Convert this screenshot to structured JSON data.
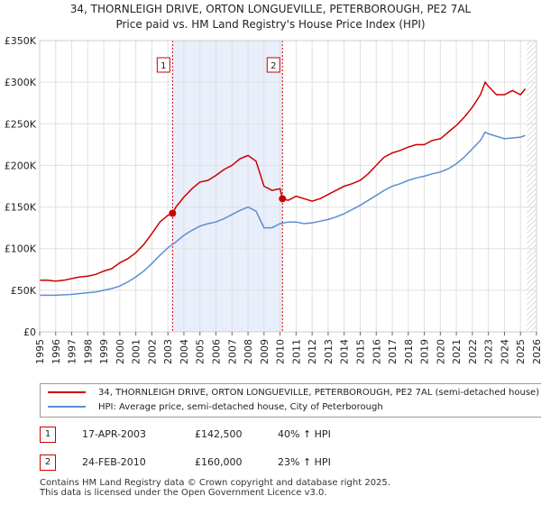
{
  "chart_data": {
    "type": "line",
    "title": "34, THORNLEIGH DRIVE, ORTON LONGUEVILLE, PETERBOROUGH, PE2 7AL",
    "subtitle": "Price paid vs. HM Land Registry's House Price Index (HPI)",
    "xlim": [
      1995,
      2026
    ],
    "ylim": [
      0,
      350000
    ],
    "x_ticks": [
      "1995",
      "1996",
      "1997",
      "1998",
      "1999",
      "2000",
      "2001",
      "2002",
      "2003",
      "2004",
      "2005",
      "2006",
      "2007",
      "2008",
      "2009",
      "2010",
      "2011",
      "2012",
      "2013",
      "2014",
      "2015",
      "2016",
      "2017",
      "2018",
      "2019",
      "2020",
      "2021",
      "2022",
      "2023",
      "2024",
      "2025",
      "2026"
    ],
    "y_ticks": [
      {
        "value": 0,
        "label": "£0"
      },
      {
        "value": 50000,
        "label": "£50K"
      },
      {
        "value": 100000,
        "label": "£100K"
      },
      {
        "value": 150000,
        "label": "£150K"
      },
      {
        "value": 200000,
        "label": "£200K"
      },
      {
        "value": 250000,
        "label": "£250K"
      },
      {
        "value": 300000,
        "label": "£300K"
      },
      {
        "value": 350000,
        "label": "£350K"
      }
    ],
    "shaded_region": {
      "from": 2003.29,
      "to": 2010.15
    },
    "future_hatch_from": 2025.4,
    "annotations": [
      {
        "label": "1",
        "x": 2003.29,
        "y": 142500
      },
      {
        "label": "2",
        "x": 2010.15,
        "y": 160000
      }
    ],
    "series": [
      {
        "name": "34, THORNLEIGH DRIVE, ORTON LONGUEVILLE, PETERBOROUGH, PE2 7AL (semi-detached house)",
        "color": "#cc0000",
        "x": [
          1995.0,
          1995.5,
          1996.0,
          1996.5,
          1997.0,
          1997.5,
          1998.0,
          1998.5,
          1999.0,
          1999.5,
          2000.0,
          2000.5,
          2001.0,
          2001.5,
          2002.0,
          2002.5,
          2003.0,
          2003.29,
          2003.5,
          2004.0,
          2004.5,
          2005.0,
          2005.5,
          2006.0,
          2006.5,
          2007.0,
          2007.5,
          2008.0,
          2008.5,
          2009.0,
          2009.5,
          2010.0,
          2010.15,
          2010.5,
          2011.0,
          2011.5,
          2012.0,
          2012.5,
          2013.0,
          2013.5,
          2014.0,
          2014.5,
          2015.0,
          2015.5,
          2016.0,
          2016.5,
          2017.0,
          2017.5,
          2018.0,
          2018.5,
          2019.0,
          2019.5,
          2020.0,
          2020.5,
          2021.0,
          2021.5,
          2022.0,
          2022.5,
          2022.8,
          2023.0,
          2023.5,
          2024.0,
          2024.5,
          2025.0,
          2025.3
        ],
        "values": [
          62000,
          62000,
          61000,
          62000,
          64000,
          66000,
          67000,
          69000,
          73000,
          76000,
          83000,
          88000,
          95000,
          105000,
          118000,
          132000,
          140000,
          142500,
          150000,
          162000,
          172000,
          180000,
          182000,
          188000,
          195000,
          200000,
          208000,
          212000,
          205000,
          175000,
          170000,
          172000,
          160000,
          158000,
          163000,
          160000,
          157000,
          160000,
          165000,
          170000,
          175000,
          178000,
          182000,
          190000,
          200000,
          210000,
          215000,
          218000,
          222000,
          225000,
          225000,
          230000,
          232000,
          240000,
          248000,
          258000,
          270000,
          285000,
          300000,
          295000,
          285000,
          285000,
          290000,
          285000,
          292000
        ]
      },
      {
        "name": "HPI: Average price, semi-detached house, City of Peterborough",
        "color": "#5b8fd0",
        "x": [
          1995.0,
          1995.5,
          1996.0,
          1996.5,
          1997.0,
          1997.5,
          1998.0,
          1998.5,
          1999.0,
          1999.5,
          2000.0,
          2000.5,
          2001.0,
          2001.5,
          2002.0,
          2002.5,
          2003.0,
          2003.5,
          2004.0,
          2004.5,
          2005.0,
          2005.5,
          2006.0,
          2006.5,
          2007.0,
          2007.5,
          2008.0,
          2008.5,
          2009.0,
          2009.5,
          2010.0,
          2010.5,
          2011.0,
          2011.5,
          2012.0,
          2012.5,
          2013.0,
          2013.5,
          2014.0,
          2014.5,
          2015.0,
          2015.5,
          2016.0,
          2016.5,
          2017.0,
          2017.5,
          2018.0,
          2018.5,
          2019.0,
          2019.5,
          2020.0,
          2020.5,
          2021.0,
          2021.5,
          2022.0,
          2022.5,
          2022.8,
          2023.0,
          2023.5,
          2024.0,
          2024.5,
          2025.0,
          2025.3
        ],
        "values": [
          44000,
          44000,
          44000,
          44500,
          45000,
          46000,
          47000,
          48000,
          50000,
          52000,
          55000,
          60000,
          66000,
          73000,
          82000,
          92000,
          101000,
          108000,
          116000,
          122000,
          127000,
          130000,
          132000,
          136000,
          141000,
          146000,
          150000,
          145000,
          125000,
          125000,
          130000,
          132000,
          132000,
          130000,
          131000,
          133000,
          135000,
          138000,
          142000,
          147000,
          152000,
          158000,
          164000,
          170000,
          175000,
          178000,
          182000,
          185000,
          187000,
          190000,
          192000,
          196000,
          202000,
          210000,
          220000,
          230000,
          240000,
          238000,
          235000,
          232000,
          233000,
          234000,
          236000
        ]
      }
    ]
  },
  "legend": {
    "items": [
      {
        "label": "34, THORNLEIGH DRIVE, ORTON LONGUEVILLE, PETERBOROUGH, PE2 7AL (semi-detached house)",
        "color": "#cc0000"
      },
      {
        "label": "HPI: Average price, semi-detached house, City of Peterborough",
        "color": "#5b8fd0"
      }
    ]
  },
  "sales": [
    {
      "num": "1",
      "date": "17-APR-2003",
      "price": "£142,500",
      "hpi": "40% ↑ HPI"
    },
    {
      "num": "2",
      "date": "24-FEB-2010",
      "price": "£160,000",
      "hpi": "23% ↑ HPI"
    }
  ],
  "footer": {
    "line1": "Contains HM Land Registry data © Crown copyright and database right 2025.",
    "line2": "This data is licensed under the Open Government Licence v3.0."
  }
}
